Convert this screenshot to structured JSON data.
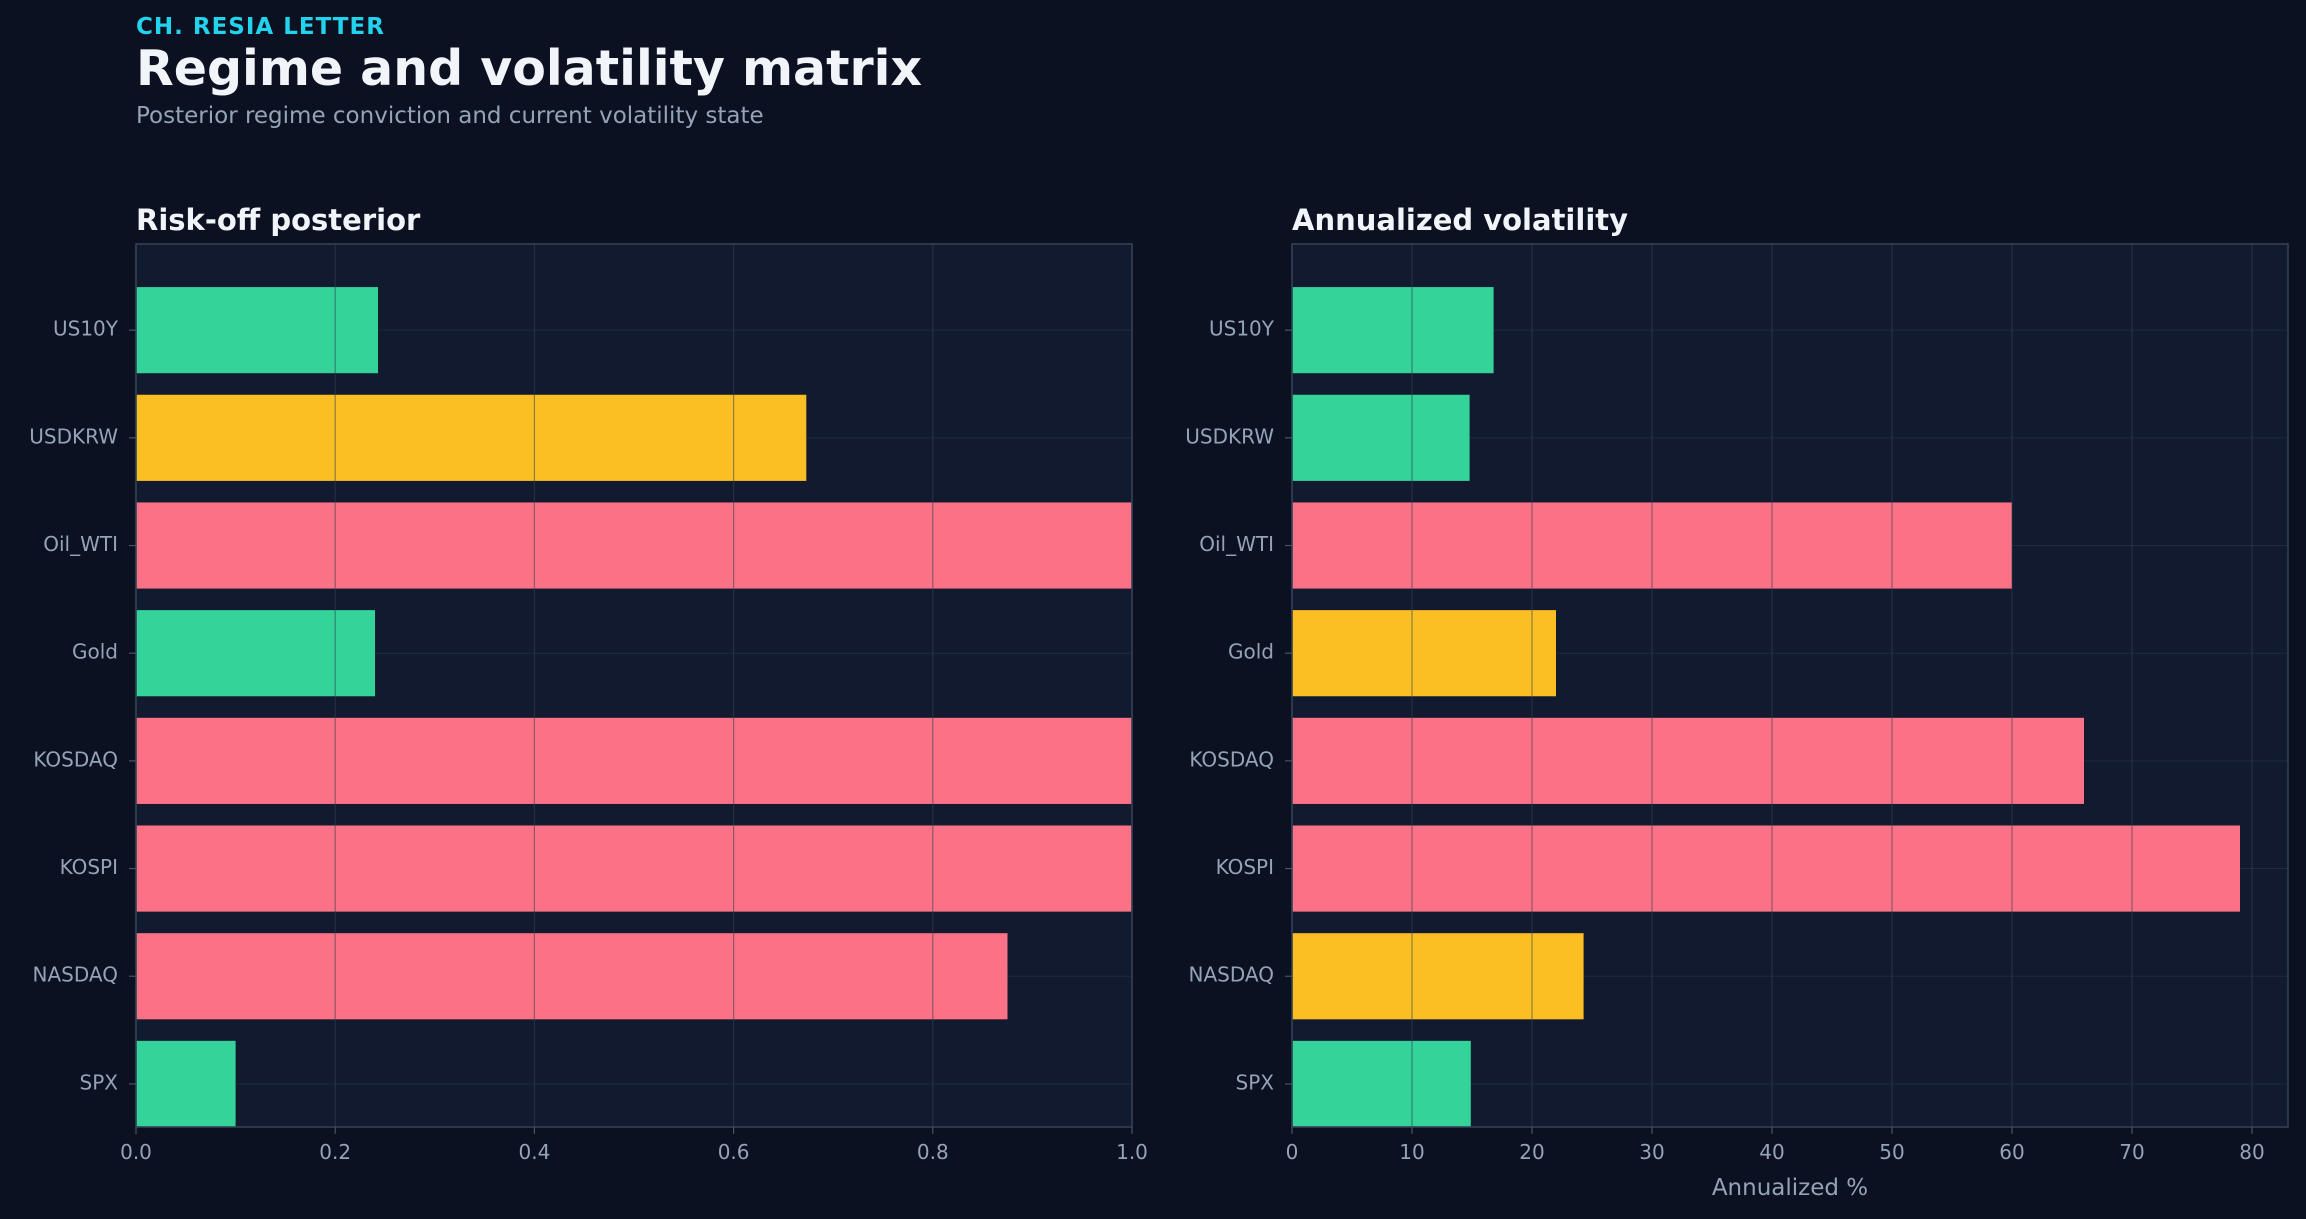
{
  "header": {
    "kicker": "CH. RESIA LETTER",
    "title": "Regime and volatility matrix",
    "subtitle": "Posterior regime conviction and current volatility state"
  },
  "colors": {
    "background": "#0b1120",
    "plot_background": "#111a2e",
    "green": "#34d399",
    "amber": "#fbbf24",
    "red": "#fb7185",
    "accent": "#22d3ee"
  },
  "chart_data": [
    {
      "type": "bar",
      "orientation": "horizontal",
      "title": "Risk-off posterior",
      "xlabel": "",
      "ylabel": "",
      "categories": [
        "US10Y",
        "USDKRW",
        "Oil_WTI",
        "Gold",
        "KOSDAQ",
        "KOSPI",
        "NASDAQ",
        "SPX"
      ],
      "values": [
        0.243,
        0.673,
        1.0,
        0.24,
        1.0,
        1.0,
        0.875,
        0.1
      ],
      "bar_colors": [
        "green",
        "amber",
        "red",
        "green",
        "red",
        "red",
        "red",
        "green"
      ],
      "xlim": [
        0,
        1.0
      ],
      "xticks": [
        "0.0",
        "0.2",
        "0.4",
        "0.6",
        "0.8",
        "1.0"
      ],
      "grid": true
    },
    {
      "type": "bar",
      "orientation": "horizontal",
      "title": "Annualized volatility",
      "xlabel": "Annualized %",
      "ylabel": "",
      "categories": [
        "US10Y",
        "USDKRW",
        "Oil_WTI",
        "Gold",
        "KOSDAQ",
        "KOSPI",
        "NASDAQ",
        "SPX"
      ],
      "values": [
        16.8,
        14.8,
        60.0,
        22.0,
        66.0,
        79.0,
        24.3,
        14.9
      ],
      "bar_colors": [
        "green",
        "green",
        "red",
        "amber",
        "red",
        "red",
        "amber",
        "green"
      ],
      "xlim": [
        0,
        83
      ],
      "xticks": [
        "0",
        "10",
        "20",
        "30",
        "40",
        "50",
        "60",
        "70",
        "80"
      ],
      "grid": true
    }
  ]
}
